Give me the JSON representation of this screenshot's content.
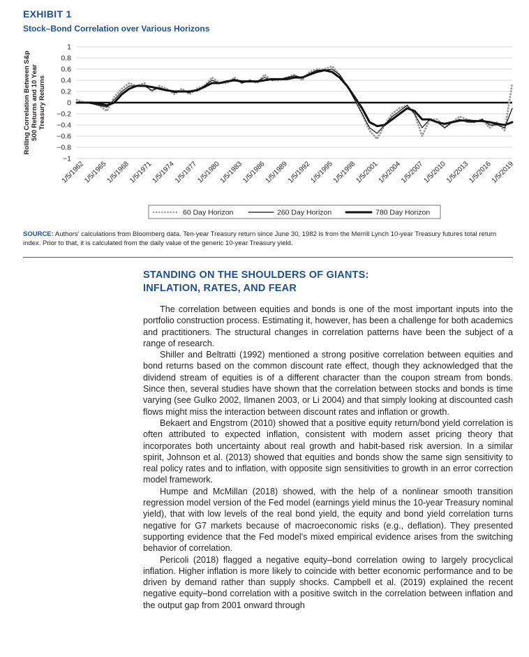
{
  "exhibit": {
    "label": "EXHIBIT 1",
    "title": "Stock–Bond Correlation over Various Horizons"
  },
  "chart_data": {
    "type": "line",
    "ylabel": "Rolling Correlation Between S&p 500 Returns and 10 Year Treasury Returns",
    "ylim": [
      -1,
      1
    ],
    "yticks": [
      "1",
      "0.8",
      "0.6",
      "0.4",
      "0.2",
      "0",
      "−0.2",
      "−0.4",
      "−0.6",
      "−0.8",
      "−1"
    ],
    "xticks": [
      "1/5/1962",
      "1/5/1965",
      "1/5/1968",
      "1/5/1971",
      "1/5/1974",
      "1/5/1977",
      "1/5/1980",
      "1/5/1983",
      "1/5/1986",
      "1/5/1989",
      "1/5/1992",
      "1/5/1995",
      "1/5/1998",
      "1/5/2001",
      "1/5/2004",
      "1/5/2007",
      "1/5/2010",
      "1/5/2013",
      "1/5/2016",
      "1/5/2019"
    ],
    "grid": "horizontal",
    "legend_position": "bottom",
    "x": [
      1962,
      1963,
      1964,
      1965,
      1966,
      1967,
      1968,
      1969,
      1970,
      1971,
      1972,
      1973,
      1974,
      1975,
      1976,
      1977,
      1978,
      1979,
      1980,
      1981,
      1982,
      1983,
      1984,
      1985,
      1986,
      1987,
      1988,
      1989,
      1990,
      1991,
      1992,
      1993,
      1994,
      1995,
      1996,
      1997,
      1998,
      1999,
      2000,
      2001,
      2002,
      2003,
      2004,
      2005,
      2006,
      2007,
      2008,
      2009,
      2010,
      2011,
      2012,
      2013,
      2014,
      2015,
      2016,
      2017,
      2018,
      2019,
      2020
    ],
    "series": [
      {
        "name": "60 Day Horizon",
        "style": "dotted",
        "color": "#9a9a9a",
        "values": [
          0.05,
          0.0,
          0.0,
          -0.05,
          -0.15,
          0.1,
          0.25,
          0.35,
          0.3,
          0.35,
          0.2,
          0.3,
          0.25,
          0.15,
          0.25,
          0.15,
          0.25,
          0.3,
          0.45,
          0.35,
          0.35,
          0.45,
          0.35,
          0.4,
          0.35,
          0.5,
          0.4,
          0.4,
          0.45,
          0.5,
          0.4,
          0.55,
          0.6,
          0.6,
          0.65,
          0.5,
          0.3,
          0.1,
          -0.2,
          -0.5,
          -0.65,
          -0.4,
          -0.2,
          -0.1,
          -0.05,
          -0.2,
          -0.6,
          -0.3,
          -0.3,
          -0.45,
          -0.35,
          -0.25,
          -0.3,
          -0.35,
          -0.3,
          -0.45,
          -0.35,
          -0.5,
          0.35
        ]
      },
      {
        "name": "260 Day Horizon",
        "style": "thin",
        "color": "#111111",
        "values": [
          0.0,
          0.0,
          -0.02,
          -0.05,
          -0.08,
          0.05,
          0.2,
          0.3,
          0.3,
          0.3,
          0.22,
          0.27,
          0.22,
          0.18,
          0.2,
          0.18,
          0.22,
          0.3,
          0.4,
          0.35,
          0.38,
          0.42,
          0.35,
          0.4,
          0.38,
          0.45,
          0.4,
          0.42,
          0.45,
          0.48,
          0.45,
          0.52,
          0.58,
          0.58,
          0.6,
          0.5,
          0.3,
          0.05,
          -0.2,
          -0.45,
          -0.55,
          -0.4,
          -0.25,
          -0.15,
          -0.05,
          -0.2,
          -0.45,
          -0.3,
          -0.35,
          -0.45,
          -0.35,
          -0.3,
          -0.35,
          -0.35,
          -0.3,
          -0.4,
          -0.4,
          -0.45,
          -0.1
        ]
      },
      {
        "name": "780 Day Horizon",
        "style": "thick",
        "color": "#111111",
        "values": [
          0.0,
          0.0,
          0.0,
          -0.02,
          -0.05,
          0.0,
          0.15,
          0.25,
          0.3,
          0.3,
          0.28,
          0.25,
          0.22,
          0.2,
          0.2,
          0.2,
          0.22,
          0.28,
          0.35,
          0.35,
          0.38,
          0.4,
          0.38,
          0.38,
          0.38,
          0.4,
          0.42,
          0.42,
          0.42,
          0.45,
          0.45,
          0.5,
          0.55,
          0.58,
          0.55,
          0.45,
          0.3,
          0.1,
          -0.1,
          -0.35,
          -0.42,
          -0.4,
          -0.3,
          -0.2,
          -0.1,
          -0.15,
          -0.3,
          -0.3,
          -0.35,
          -0.38,
          -0.35,
          -0.32,
          -0.32,
          -0.33,
          -0.33,
          -0.35,
          -0.38,
          -0.4,
          -0.35
        ]
      }
    ]
  },
  "source": {
    "label": "SOURCE:",
    "text": " Authors' calculations from Bloomberg data. Ten-year Treasury return since June 30, 1982 is from the Merrill Lynch 10-year Treasury futures total return index. Prior to that, it is calculated from the daily value of the generic 10-year Treasury yield."
  },
  "section": {
    "heading_line1": "STANDING ON THE SHOULDERS OF GIANTS:",
    "heading_line2": "INFLATION, RATES, AND FEAR"
  },
  "paragraphs": [
    "The correlation between equities and bonds is one of the most important inputs into the portfolio construction process. Estimating it, however, has been a challenge for both academics and practitioners. The structural changes in correlation patterns have been the subject of a range of research.",
    "Shiller and Beltratti (1992) mentioned a strong positive correlation between equities and bond returns based on the common discount rate effect, though they acknowledged that the dividend stream of equities is of a different character than the coupon stream from bonds. Since then, several studies have shown that the correlation between stocks and bonds is time varying (see Gulko 2002, Ilmanen 2003, or Li 2004) and that simply looking at discounted cash flows might miss the interaction between discount rates and inflation or growth.",
    "Bekaert and Engstrom (2010) showed that a positive equity return/bond yield correlation is often attributed to expected inflation, consistent with modern asset pricing theory that incorporates both uncertainty about real growth and habit-based risk aversion. In a similar spirit, Johnson et al. (2013) showed that equities and bonds show the same sign sensitivity to real policy rates and to inflation, with opposite sign sensitivities to growth in an error correction model framework.",
    "Humpe and McMillan (2018) showed, with the help of a nonlinear smooth transition regression model version of the Fed model (earnings yield minus the 10-year Treasury nominal yield), that with low levels of the real bond yield, the equity and bond yield correlation turns negative for G7 markets because of macroeconomic risks (e.g., deflation). They presented supporting evidence that the Fed model's mixed empirical evidence arises from the switching behavior of correlation.",
    "Pericoli (2018) flagged a negative equity–bond correlation owing to largely procyclical inflation. Higher inflation is more likely to coincide with better economic performance and to be driven by demand rather than supply shocks. Campbell et al. (2019) explained the recent negative equity–bond correlation with a positive switch in the correlation between inflation and the output gap from 2001 onward through"
  ]
}
